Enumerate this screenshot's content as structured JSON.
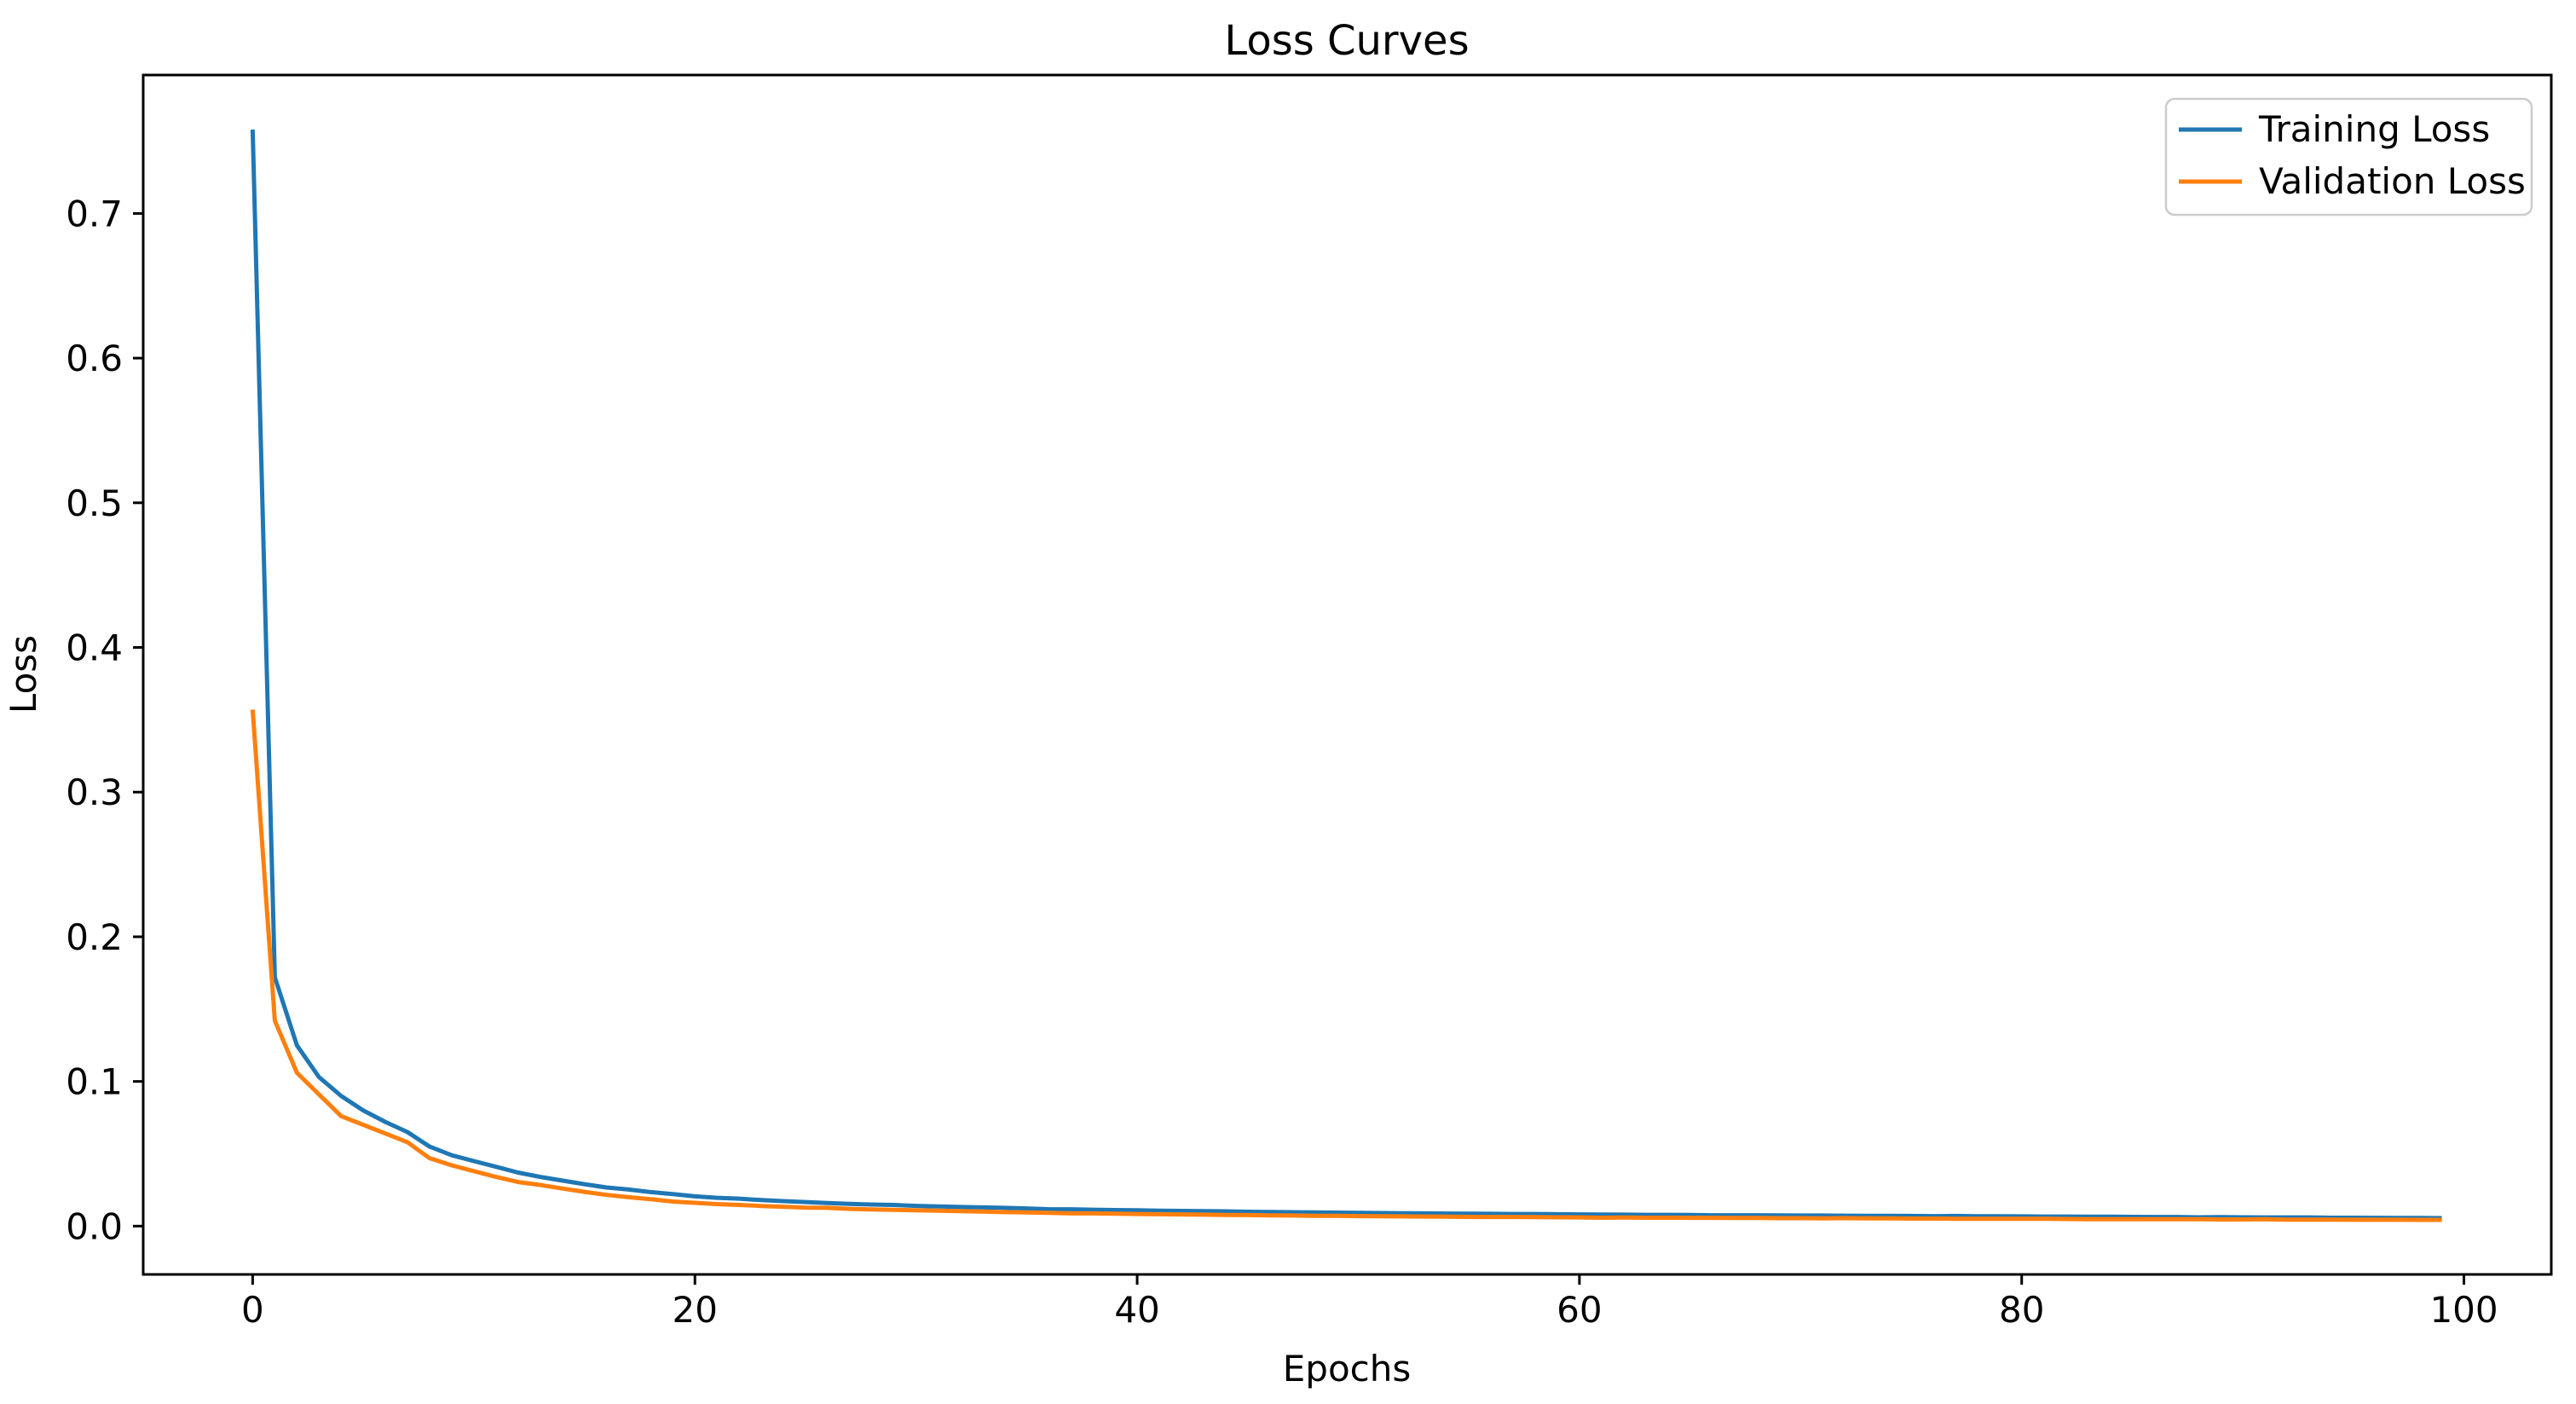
{
  "figure": {
    "background_color": "#ffffff",
    "spine_color": "#000000",
    "text_color": "#000000"
  },
  "chart_data": {
    "type": "line",
    "title": "Loss Curves",
    "xlabel": "Epochs",
    "ylabel": "Loss",
    "grid": false,
    "legend_position": "upper right",
    "xlim": [
      -4.95,
      103.95
    ],
    "ylim": [
      -0.0334,
      0.7957
    ],
    "x_ticks": [
      0,
      20,
      40,
      60,
      80,
      100
    ],
    "x_tick_labels": [
      "0",
      "20",
      "40",
      "60",
      "80",
      "100"
    ],
    "y_ticks": [
      0.0,
      0.1,
      0.2,
      0.3,
      0.4,
      0.5,
      0.6,
      0.7
    ],
    "y_tick_labels": [
      "0.0",
      "0.1",
      "0.2",
      "0.3",
      "0.4",
      "0.5",
      "0.6",
      "0.7"
    ],
    "x": [
      0,
      1,
      2,
      3,
      4,
      5,
      6,
      7,
      8,
      9,
      10,
      11,
      12,
      13,
      14,
      15,
      16,
      17,
      18,
      19,
      20,
      21,
      22,
      23,
      24,
      25,
      26,
      27,
      28,
      29,
      30,
      31,
      32,
      33,
      34,
      35,
      36,
      37,
      38,
      39,
      40,
      41,
      42,
      43,
      44,
      45,
      46,
      47,
      48,
      49,
      50,
      51,
      52,
      53,
      54,
      55,
      56,
      57,
      58,
      59,
      60,
      61,
      62,
      63,
      64,
      65,
      66,
      67,
      68,
      69,
      70,
      71,
      72,
      73,
      74,
      75,
      76,
      77,
      78,
      79,
      80,
      81,
      82,
      83,
      84,
      85,
      86,
      87,
      88,
      89,
      90,
      91,
      92,
      93,
      94,
      95,
      96,
      97,
      98,
      99
    ],
    "series": [
      {
        "name": "Training Loss",
        "color": "#1f77b4",
        "values": [
          0.758,
          0.172,
          0.125,
          0.103,
          0.09,
          0.08,
          0.072,
          0.065,
          0.055,
          0.049,
          0.045,
          0.041,
          0.037,
          0.034,
          0.0315,
          0.029,
          0.0267,
          0.0253,
          0.0235,
          0.0221,
          0.0206,
          0.0196,
          0.019,
          0.018,
          0.0173,
          0.0166,
          0.016,
          0.0154,
          0.0149,
          0.0146,
          0.014,
          0.0136,
          0.0132,
          0.0129,
          0.0126,
          0.0122,
          0.0117,
          0.0116,
          0.0113,
          0.0111,
          0.0109,
          0.0107,
          0.0105,
          0.0103,
          0.0102,
          0.0099,
          0.0098,
          0.0096,
          0.0095,
          0.0093,
          0.0092,
          0.009,
          0.0089,
          0.0088,
          0.0087,
          0.0086,
          0.0085,
          0.0084,
          0.0084,
          0.0082,
          0.0081,
          0.008,
          0.0079,
          0.0078,
          0.0078,
          0.0077,
          0.0075,
          0.0075,
          0.0075,
          0.0074,
          0.0073,
          0.0073,
          0.0072,
          0.0071,
          0.0071,
          0.007,
          0.0069,
          0.007,
          0.0068,
          0.0068,
          0.0067,
          0.0066,
          0.0066,
          0.0065,
          0.0065,
          0.0064,
          0.0063,
          0.0063,
          0.0061,
          0.0062,
          0.0061,
          0.006,
          0.006,
          0.006,
          0.0058,
          0.0058,
          0.0057,
          0.0056,
          0.0056,
          0.0055
        ]
      },
      {
        "name": "Validation Loss",
        "color": "#ff7f0e",
        "values": [
          0.357,
          0.142,
          0.106,
          0.091,
          0.076,
          0.07,
          0.064,
          0.058,
          0.047,
          0.042,
          0.038,
          0.034,
          0.0305,
          0.0285,
          0.026,
          0.0237,
          0.0216,
          0.02,
          0.0186,
          0.017,
          0.0161,
          0.0152,
          0.0146,
          0.0139,
          0.0134,
          0.0128,
          0.0126,
          0.0119,
          0.0115,
          0.0112,
          0.0109,
          0.0106,
          0.0103,
          0.01,
          0.0097,
          0.0095,
          0.0092,
          0.0088,
          0.0088,
          0.0086,
          0.0084,
          0.0082,
          0.0081,
          0.0079,
          0.0077,
          0.0076,
          0.0074,
          0.0073,
          0.0071,
          0.0071,
          0.0069,
          0.0068,
          0.0067,
          0.0066,
          0.0065,
          0.0064,
          0.0063,
          0.0063,
          0.0062,
          0.0061,
          0.006,
          0.0058,
          0.0059,
          0.0058,
          0.0058,
          0.0057,
          0.0057,
          0.0056,
          0.0056,
          0.0055,
          0.0055,
          0.0054,
          0.0055,
          0.0053,
          0.0053,
          0.0052,
          0.0052,
          0.0051,
          0.0051,
          0.005,
          0.005,
          0.005,
          0.0049,
          0.0047,
          0.0048,
          0.0048,
          0.0048,
          0.0047,
          0.0047,
          0.0046,
          0.0046,
          0.0047,
          0.0045,
          0.0045,
          0.0045,
          0.0044,
          0.0044,
          0.0044,
          0.0043,
          0.0043
        ]
      }
    ]
  }
}
